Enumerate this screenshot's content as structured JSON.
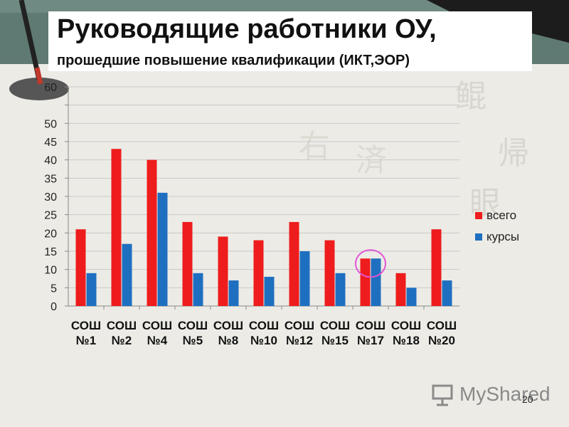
{
  "slide": {
    "title": "Руководящие работники ОУ,",
    "subtitle": "прошедшие повышение квалификации (ИКТ,ЭОР)",
    "page_number": "20",
    "watermark": "MyShared"
  },
  "chart_data": {
    "type": "bar",
    "title": "",
    "xlabel": "",
    "ylabel": "",
    "ylim": [
      0,
      60
    ],
    "yticks": [
      0,
      5,
      10,
      15,
      20,
      25,
      30,
      35,
      40,
      45,
      50,
      55,
      60
    ],
    "ytick_labels": [
      "0",
      "5",
      "10",
      "15",
      "20",
      "25",
      "30",
      "35",
      "40",
      "45",
      "50",
      "",
      "60"
    ],
    "grid": true,
    "legend_position": "right",
    "categories": [
      [
        "СОШ",
        "№1"
      ],
      [
        "СОШ",
        "№2"
      ],
      [
        "СОШ",
        "№4"
      ],
      [
        "СОШ",
        "№5"
      ],
      [
        "СОШ",
        "№8"
      ],
      [
        "СОШ",
        "№10"
      ],
      [
        "СОШ",
        "№12"
      ],
      [
        "СОШ",
        "№15"
      ],
      [
        "СОШ",
        "№17"
      ],
      [
        "СОШ",
        "№18"
      ],
      [
        "СОШ",
        "№20"
      ]
    ],
    "series": [
      {
        "name": "всего",
        "color": "#ee1c1c",
        "values": [
          21,
          43,
          40,
          23,
          19,
          18,
          23,
          18,
          13,
          9,
          21
        ]
      },
      {
        "name": "курсы",
        "color": "#1f6fc0",
        "values": [
          9,
          17,
          31,
          9,
          7,
          8,
          15,
          9,
          13,
          5,
          7
        ]
      }
    ],
    "highlight": {
      "category_index": 8,
      "color": "#e256d6"
    }
  }
}
